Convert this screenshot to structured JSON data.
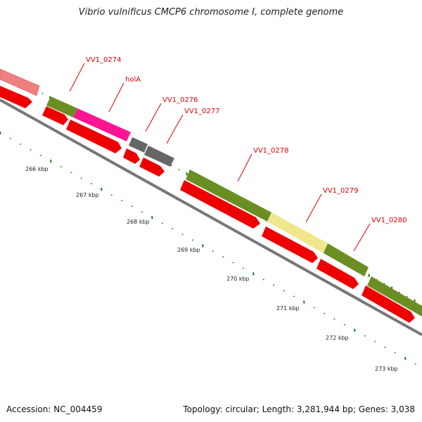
{
  "header": {
    "title": "Vibrio vulnificus CMCP6 chromosome I, complete genome"
  },
  "footer": {
    "accession": "Accession: NC_004459",
    "summary": "Topology: circular; Length: 3,281,944 bp; Genes: 3,038"
  },
  "colors": {
    "backbone": "#777777",
    "cds": "#ee0000",
    "tick": "#1a7a1a",
    "label": "#dd0000",
    "gene_olive": "#6b8e23",
    "gene_magenta": "#ff00aa",
    "gene_gray": "#666666",
    "gene_pale_yellow": "#f0e68c",
    "gene_pink": "#f08080"
  },
  "kbp_labels": [
    "266 kbp",
    "267 kbp",
    "268 kbp",
    "269 kbp",
    "270 kbp",
    "271 kbp",
    "272 kbp",
    "273 kbp"
  ],
  "gene_labels": [
    "VV1_0274",
    "holA",
    "VV1_0276",
    "VV1_0277",
    "VV1_0278",
    "VV1_0279",
    "VV1_0280"
  ]
}
